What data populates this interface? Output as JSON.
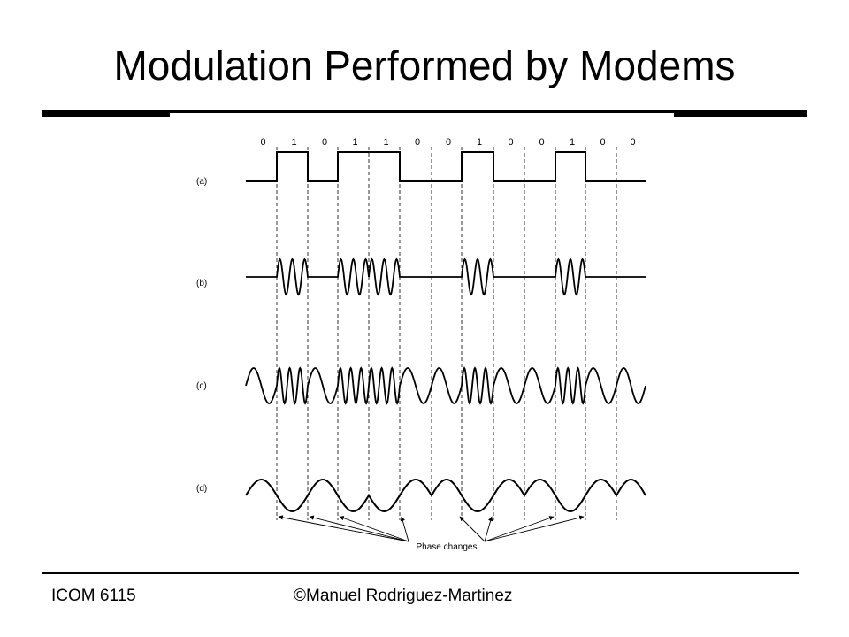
{
  "slide": {
    "title": "Modulation Performed by Modems"
  },
  "figure": {
    "bits": [
      "0",
      "1",
      "0",
      "1",
      "1",
      "0",
      "0",
      "1",
      "0",
      "0",
      "1",
      "0",
      "0"
    ],
    "row_labels": [
      "(a)",
      "(b)",
      "(c)",
      "(d)"
    ],
    "phase_label": "Phase changes"
  },
  "footer": {
    "course": "ICOM 6115",
    "copyright": "©Manuel Rodriguez-Martinez"
  }
}
